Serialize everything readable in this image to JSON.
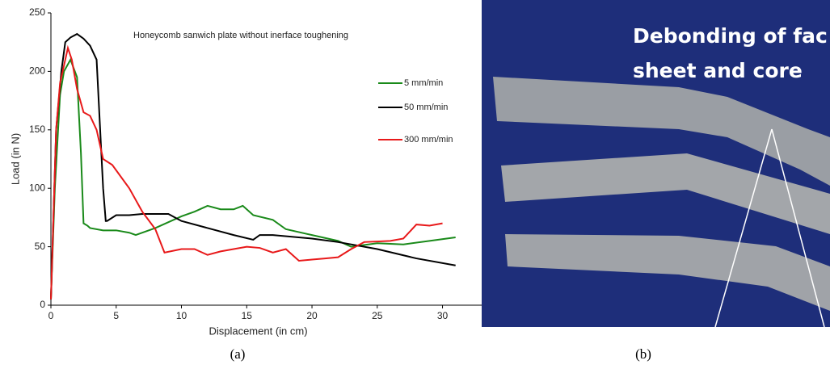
{
  "chart_data": {
    "type": "line",
    "annotation": "Honeycomb sanwich plate without inerface toughening",
    "xlabel": "Displacement (in cm)",
    "ylabel": "Load (in N)",
    "xlim": [
      0,
      33
    ],
    "ylim": [
      0,
      250
    ],
    "xticks": [
      0,
      5,
      10,
      15,
      20,
      25,
      30
    ],
    "yticks": [
      0,
      50,
      100,
      150,
      200,
      250
    ],
    "grid": false,
    "legend": "right",
    "series": [
      {
        "name": "5 mm/min",
        "color": "#1a8a1a",
        "x": [
          0,
          0.3,
          0.7,
          1.0,
          1.5,
          2.0,
          2.3,
          2.5,
          2.8,
          3,
          4,
          5,
          6,
          6.5,
          8,
          10,
          11,
          12,
          13,
          14,
          14.7,
          15.5,
          17,
          18,
          20,
          22,
          23,
          25,
          27,
          29,
          31
        ],
        "values": [
          5,
          100,
          180,
          200,
          210,
          195,
          130,
          70,
          68,
          66,
          64,
          64,
          62,
          60,
          66,
          76,
          80,
          85,
          82,
          82,
          85,
          77,
          73,
          65,
          60,
          55,
          50,
          53,
          52,
          55,
          58
        ]
      },
      {
        "name": "50 mm/min",
        "color": "#000000",
        "x": [
          0,
          0.4,
          0.8,
          1.1,
          1.5,
          2.0,
          2.5,
          3.0,
          3.5,
          4.0,
          4.2,
          4.3,
          5,
          6,
          7,
          8,
          9,
          10,
          12,
          14,
          15.5,
          16,
          17,
          20,
          22,
          25,
          28,
          31
        ],
        "values": [
          5,
          150,
          200,
          225,
          229,
          232,
          228,
          222,
          210,
          100,
          72,
          72,
          77,
          77,
          78,
          78,
          78,
          72,
          66,
          60,
          56,
          60,
          60,
          57,
          54,
          48,
          40,
          34
        ]
      },
      {
        "name": "300 mm/min",
        "color": "#e8191a",
        "x": [
          0,
          0.4,
          0.7,
          1.0,
          1.3,
          1.6,
          2,
          2.5,
          3,
          3.5,
          4,
          4.7,
          6,
          7,
          8,
          8.7,
          10,
          11,
          12,
          13,
          14,
          15,
          16,
          17,
          18,
          19,
          20,
          21,
          22,
          23,
          24,
          26,
          27,
          28,
          29,
          30
        ],
        "values": [
          5,
          150,
          190,
          205,
          220,
          210,
          185,
          165,
          162,
          150,
          125,
          120,
          100,
          80,
          65,
          45,
          48,
          48,
          43,
          46,
          48,
          50,
          49,
          45,
          48,
          38,
          39,
          40,
          41,
          48,
          54,
          55,
          57,
          69,
          68,
          70
        ]
      }
    ]
  },
  "photo": {
    "text": [
      "Debonding of fac",
      "sheet and core"
    ]
  },
  "captions": [
    "(a)",
    "(b)"
  ]
}
